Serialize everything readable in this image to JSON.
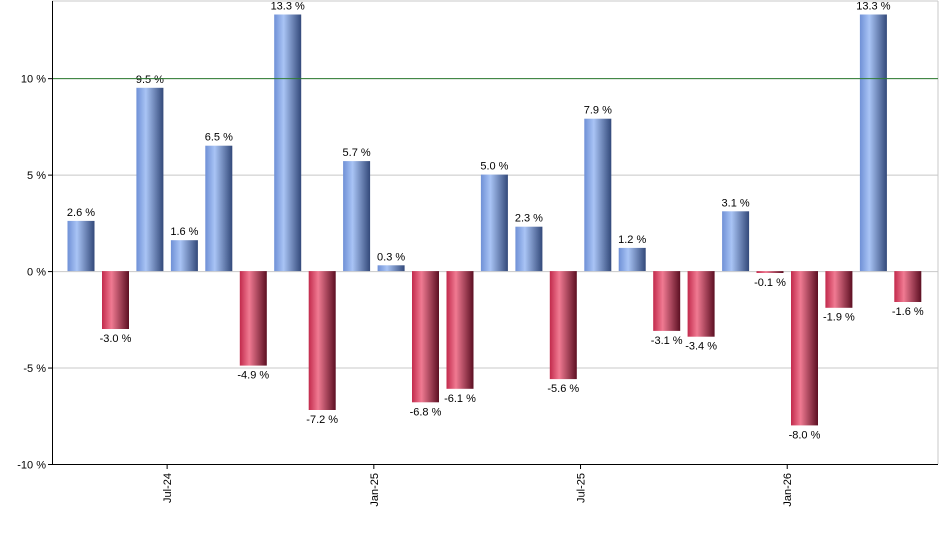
{
  "chart_data": {
    "type": "bar",
    "title": "",
    "xlabel": "",
    "ylabel": "",
    "ylim": [
      -10,
      14
    ],
    "y_ticks": [
      -10,
      -5,
      0,
      5,
      10
    ],
    "y_tick_labels": [
      "-10 %",
      "-5 %",
      "0 %",
      "5 %",
      "10 %"
    ],
    "grid": true,
    "reference_line": {
      "value": 10,
      "color": "#2e7d32"
    },
    "values": [
      2.6,
      -3.0,
      9.5,
      1.6,
      6.5,
      -4.9,
      13.3,
      -7.2,
      5.7,
      0.3,
      -6.8,
      -6.1,
      5.0,
      2.3,
      -5.6,
      7.9,
      1.2,
      -3.1,
      -3.4,
      3.1,
      -0.1,
      -8.0,
      -1.9,
      13.3,
      -1.6
    ],
    "data_labels": [
      "2.6 %",
      "-3.0 %",
      "9.5 %",
      "1.6 %",
      "6.5 %",
      "-4.9 %",
      "13.3 %",
      "-7.2 %",
      "5.7 %",
      "0.3 %",
      "-6.8 %",
      "-6.1 %",
      "5.0 %",
      "2.3 %",
      "-5.6 %",
      "7.9 %",
      "1.2 %",
      "-3.1 %",
      "-3.4 %",
      "3.1 %",
      "-0.1 %",
      "-8.0 %",
      "-1.9 %",
      "13.3 %",
      "-1.6 %"
    ],
    "x_ticks": [
      {
        "label": "Jul-24",
        "index": 2.5
      },
      {
        "label": "Jan-25",
        "index": 8.5
      },
      {
        "label": "Jul-25",
        "index": 14.5
      },
      {
        "label": "Jan-26",
        "index": 20.5
      }
    ],
    "colors": {
      "positive": "#7ea3e6",
      "negative": "#d23a5a",
      "grid": "#c8c8c8",
      "axis": "#000000"
    }
  }
}
